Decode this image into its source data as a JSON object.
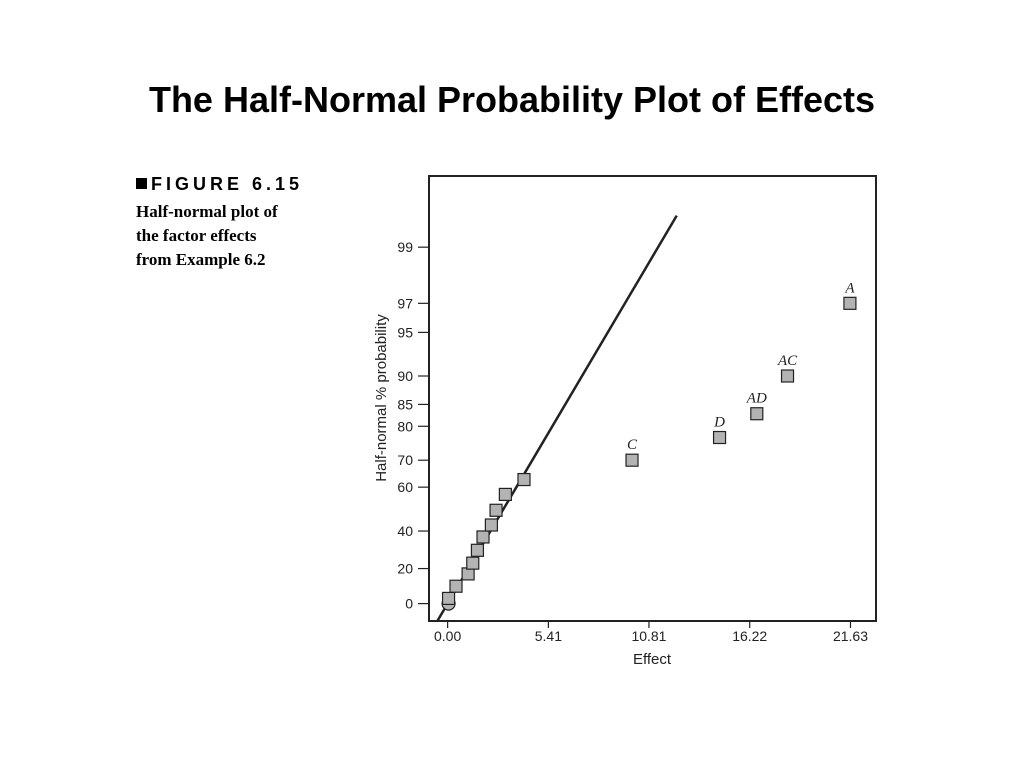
{
  "slide": {
    "title": "The Half-Normal Probability Plot of Effects"
  },
  "figure": {
    "label": "FIGURE 6.15",
    "caption_lines": [
      "Half-normal plot of",
      "the factor effects",
      "from Example 6.2"
    ]
  },
  "colors": {
    "axis": "#222222",
    "marker_fill": "#b3b3b3",
    "marker_stroke": "#222222",
    "fit_line": "#222222"
  },
  "chart_data": {
    "type": "scatter",
    "xlabel": "Effect",
    "ylabel": "Half-normal % probability",
    "xlim": [
      -1.0,
      23.0
    ],
    "ylim": [
      -10,
      99.8
    ],
    "y_scale": "half-normal probability",
    "grid": false,
    "x_ticks": [
      {
        "value": 0.0,
        "label": "0.00"
      },
      {
        "value": 5.41,
        "label": "5.41"
      },
      {
        "value": 10.81,
        "label": "10.81"
      },
      {
        "value": 16.22,
        "label": "16.22"
      },
      {
        "value": 21.63,
        "label": "21.63"
      }
    ],
    "y_ticks": [
      {
        "value": 0,
        "label": "0"
      },
      {
        "value": 20,
        "label": "20"
      },
      {
        "value": 40,
        "label": "40"
      },
      {
        "value": 60,
        "label": "60"
      },
      {
        "value": 70,
        "label": "70"
      },
      {
        "value": 80,
        "label": "80"
      },
      {
        "value": 85,
        "label": "85"
      },
      {
        "value": 90,
        "label": "90"
      },
      {
        "value": 95,
        "label": "95"
      },
      {
        "value": 97,
        "label": "97"
      },
      {
        "value": 99,
        "label": "99"
      }
    ],
    "points": [
      {
        "x": 0.05,
        "y": 0,
        "shape": "circle",
        "label": ""
      },
      {
        "x": 0.05,
        "y": 3,
        "shape": "square",
        "label": ""
      },
      {
        "x": 0.45,
        "y": 10,
        "shape": "square",
        "label": ""
      },
      {
        "x": 1.1,
        "y": 17,
        "shape": "square",
        "label": ""
      },
      {
        "x": 1.35,
        "y": 23,
        "shape": "square",
        "label": ""
      },
      {
        "x": 1.6,
        "y": 30,
        "shape": "square",
        "label": ""
      },
      {
        "x": 1.9,
        "y": 37,
        "shape": "square",
        "label": ""
      },
      {
        "x": 2.35,
        "y": 43,
        "shape": "square",
        "label": ""
      },
      {
        "x": 2.6,
        "y": 50,
        "shape": "square",
        "label": ""
      },
      {
        "x": 3.1,
        "y": 57,
        "shape": "square",
        "label": ""
      },
      {
        "x": 4.1,
        "y": 63,
        "shape": "square",
        "label": ""
      },
      {
        "x": 9.9,
        "y": 70,
        "shape": "square",
        "label": "C"
      },
      {
        "x": 14.6,
        "y": 77,
        "shape": "square",
        "label": "D"
      },
      {
        "x": 16.6,
        "y": 83,
        "shape": "square",
        "label": "AD"
      },
      {
        "x": 18.25,
        "y": 90,
        "shape": "square",
        "label": "AC"
      },
      {
        "x": 21.6,
        "y": 97,
        "shape": "square",
        "label": "A"
      }
    ],
    "fit_line": {
      "from": {
        "x": 0.0,
        "y": 0
      },
      "to": {
        "x": 4.1,
        "y": 65
      }
    }
  }
}
